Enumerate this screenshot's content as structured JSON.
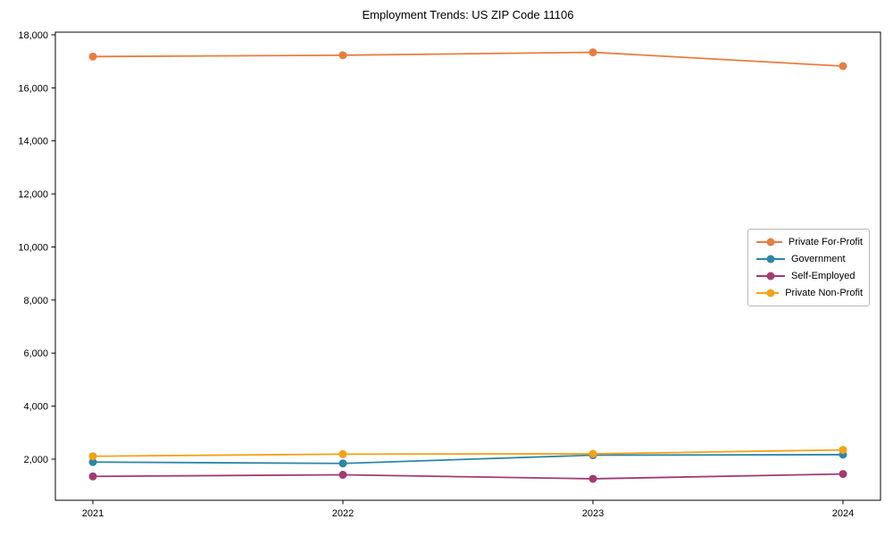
{
  "figure": {
    "background": "#ffffff",
    "spine_color": "#000000",
    "tick_color": "#000000"
  },
  "chart_data": {
    "type": "line",
    "title": "Employment Trends: US ZIP Code 11106",
    "xlabel": "",
    "ylabel": "",
    "x": [
      2021,
      2022,
      2023,
      2024
    ],
    "x_tick_labels": [
      "2021",
      "2022",
      "2023",
      "2024"
    ],
    "series": [
      {
        "name": "Private For-Profit",
        "color": "#E87D41",
        "values": [
          17180,
          17230,
          17340,
          16820
        ]
      },
      {
        "name": "Government",
        "color": "#2E86A8",
        "values": [
          1890,
          1840,
          2150,
          2170
        ]
      },
      {
        "name": "Self-Employed",
        "color": "#A23B72",
        "values": [
          1350,
          1410,
          1260,
          1440
        ]
      },
      {
        "name": "Private Non-Profit",
        "color": "#F2A217",
        "values": [
          2110,
          2190,
          2200,
          2350
        ]
      }
    ],
    "yticks": [
      2000,
      4000,
      6000,
      8000,
      10000,
      12000,
      14000,
      16000,
      18000
    ],
    "ytick_labels": [
      "2,000",
      "4,000",
      "6,000",
      "8,000",
      "10,000",
      "12,000",
      "14,000",
      "16,000",
      "18,000"
    ],
    "ylim": [
      450,
      18100
    ],
    "xlim": [
      2020.85,
      2024.15
    ],
    "grid": false,
    "legend": {
      "position": "center-right",
      "border_color": "#b8b8b8",
      "background": "#ffffff",
      "entries": [
        "Private For-Profit",
        "Government",
        "Self-Employed",
        "Private Non-Profit"
      ]
    }
  }
}
